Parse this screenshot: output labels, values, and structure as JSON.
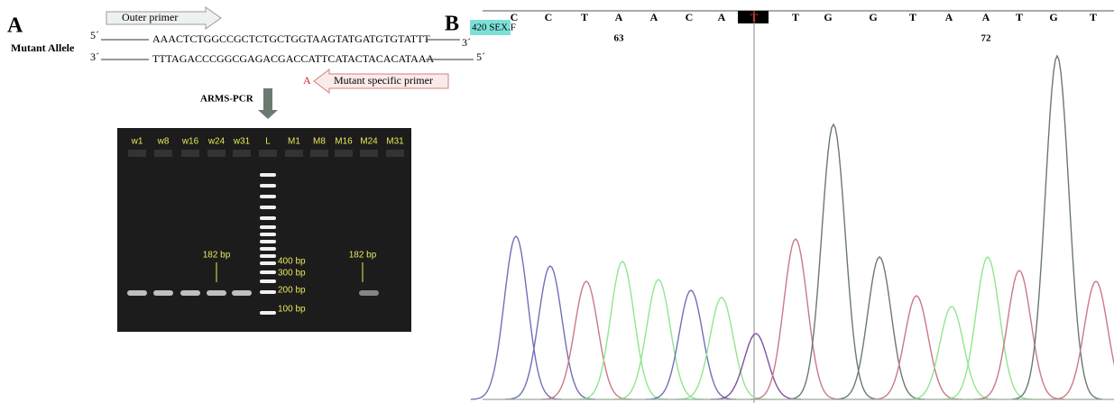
{
  "panel_a": {
    "letter": "A",
    "outer_primer": "Outer primer",
    "allele_label": "Mutant Allele",
    "top_strand": {
      "left_end": "5´",
      "sequence": "AAACTCTGGCCGCTCTGCTGGTAAGTATGATGTGTATTT",
      "right_end": "3´"
    },
    "bottom_strand": {
      "left_end": "3´",
      "sequence": "TTTAGACCCGGCGAGACGACCATTCATACTACACATAAA",
      "right_end": "5´"
    },
    "mutant_base": "A",
    "mutant_primer": "Mutant specific primer",
    "method": "ARMS-PCR",
    "gel": {
      "lanes": [
        "w1",
        "w8",
        "w16",
        "w24",
        "w31",
        "L",
        "M1",
        "M8",
        "M16",
        "M24",
        "M31"
      ],
      "band_labels": [
        "182 bp",
        "182 bp"
      ],
      "ladder": [
        "400 bp",
        "300 bp",
        "200 bp",
        "100 bp"
      ]
    }
  },
  "panel_b": {
    "letter": "B",
    "trace_label": "420 SEX.F",
    "bases": [
      "C",
      "C",
      "T",
      "A",
      "A",
      "C",
      "A",
      "T",
      "T",
      "G",
      "G",
      "T",
      "A",
      "A",
      "T",
      "G",
      "T"
    ],
    "positions": [
      "63",
      "72"
    ]
  }
}
